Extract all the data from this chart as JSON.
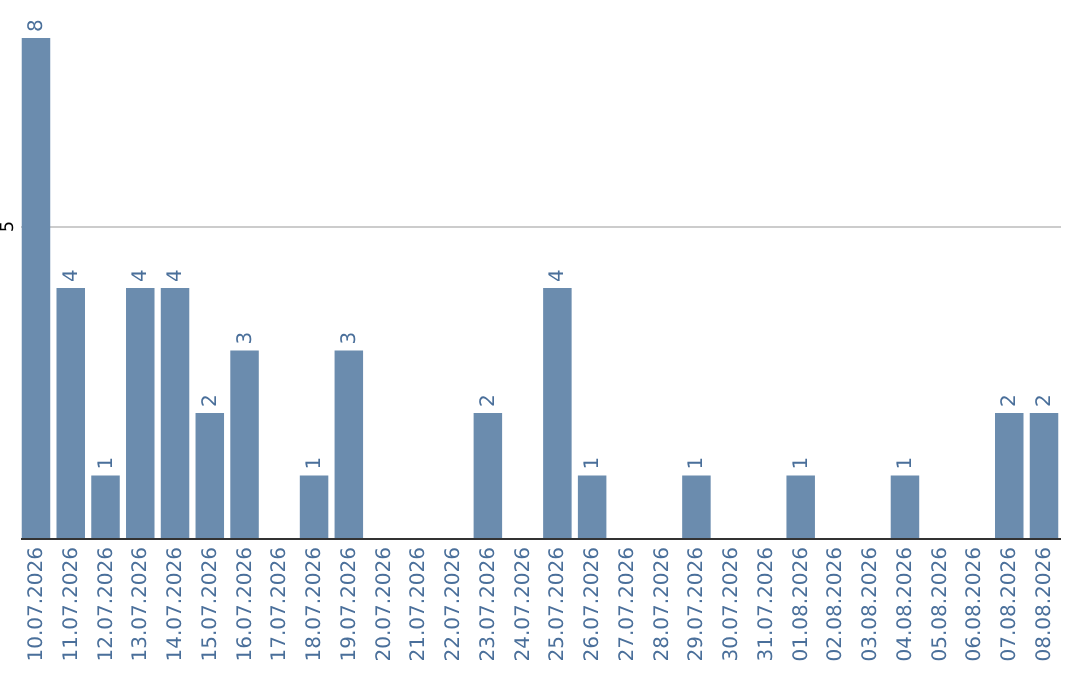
{
  "chart_data": {
    "type": "bar",
    "categories": [
      "10.07.2026",
      "11.07.2026",
      "12.07.2026",
      "13.07.2026",
      "14.07.2026",
      "15.07.2026",
      "16.07.2026",
      "17.07.2026",
      "18.07.2026",
      "19.07.2026",
      "20.07.2026",
      "21.07.2026",
      "22.07.2026",
      "23.07.2026",
      "24.07.2026",
      "25.07.2026",
      "26.07.2026",
      "27.07.2026",
      "28.07.2026",
      "29.07.2026",
      "30.07.2026",
      "31.07.2026",
      "01.08.2026",
      "02.08.2026",
      "03.08.2026",
      "04.08.2026",
      "05.08.2026",
      "06.08.2026",
      "07.08.2026",
      "08.08.2026"
    ],
    "values": [
      8,
      4,
      1,
      4,
      4,
      2,
      3,
      0,
      1,
      3,
      0,
      0,
      0,
      2,
      0,
      4,
      1,
      0,
      0,
      1,
      0,
      0,
      1,
      0,
      0,
      1,
      0,
      0,
      2,
      2
    ],
    "value_labels": [
      "8",
      "4",
      "1",
      "4",
      "4",
      "2",
      "3",
      null,
      "1",
      "3",
      null,
      null,
      null,
      "2",
      null,
      "4",
      "1",
      null,
      null,
      "1",
      null,
      null,
      "1",
      null,
      null,
      "1",
      null,
      null,
      "2",
      "2"
    ],
    "color": "#6b8cae",
    "ylim": [
      0,
      8
    ],
    "yticks": [
      5
    ],
    "grid": "y"
  }
}
